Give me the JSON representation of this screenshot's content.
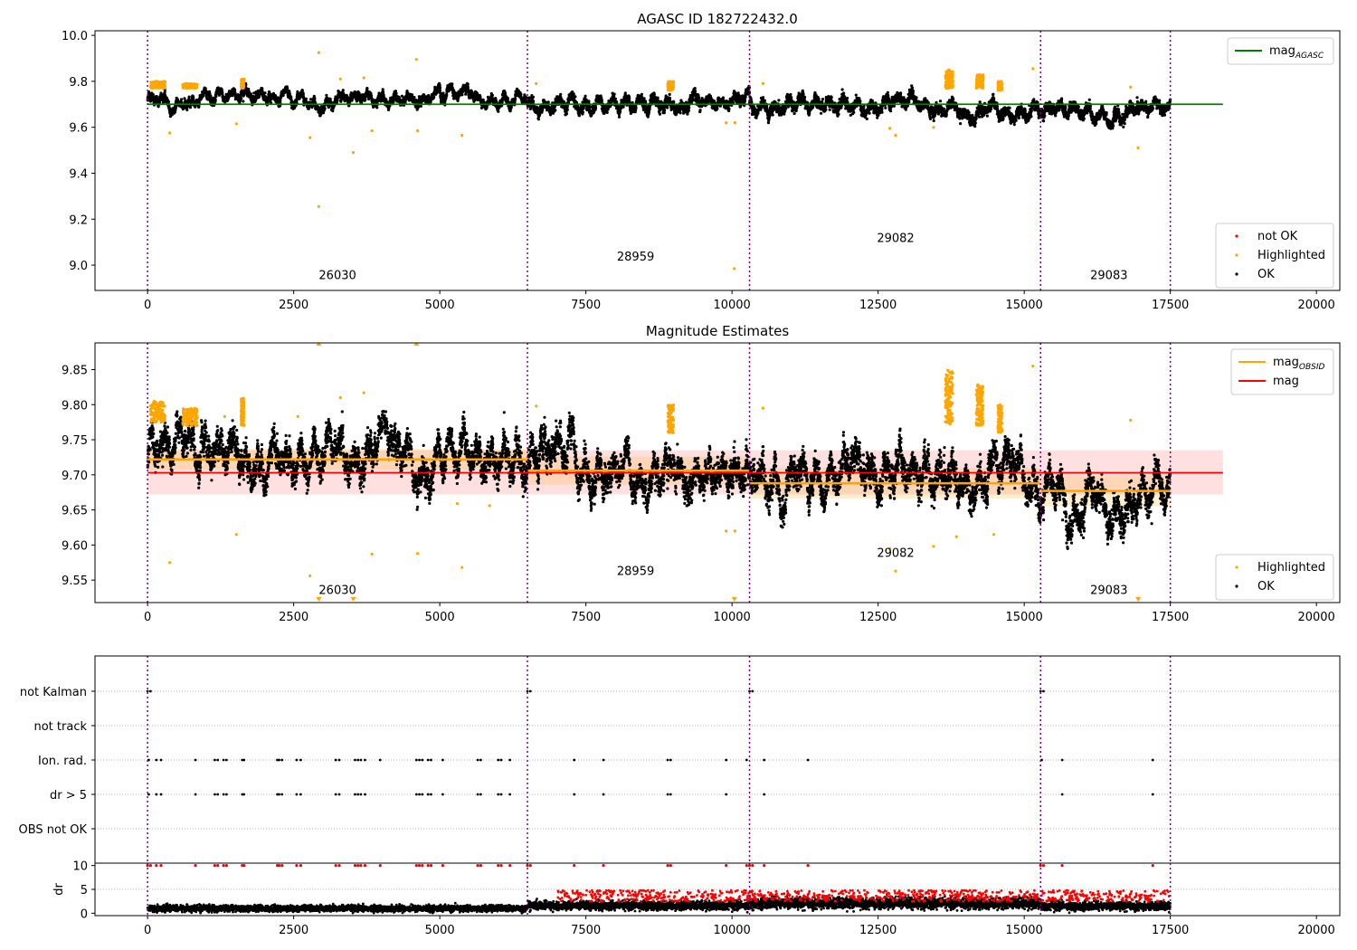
{
  "colors": {
    "ok": "#000000",
    "highlighted": "#ffa500",
    "not_ok": "#ff0000",
    "mag_agasc": "#008000",
    "mag_obsid": "#ffa500",
    "mag": "#ff0000",
    "boundary": "#800080"
  },
  "chart_data": [
    {
      "type": "scatter",
      "title": "AGASC ID 182722432.0",
      "xlim": [
        -900,
        20400
      ],
      "ylim": [
        8.89,
        10.02
      ],
      "xticks": [
        0,
        2500,
        5000,
        7500,
        10000,
        12500,
        15000,
        17500,
        20000
      ],
      "xtick_labels": [
        "0",
        "2500",
        "5000",
        "7500",
        "10000",
        "12500",
        "15000",
        "17500",
        "20000"
      ],
      "yticks": [
        9.0,
        9.2,
        9.4,
        9.6,
        9.8,
        10.0
      ],
      "ytick_labels": [
        "9.0",
        "9.2",
        "9.4",
        "9.6",
        "9.8",
        "10.0"
      ],
      "obsid_boundaries": [
        0,
        6500,
        10300,
        15280,
        17500
      ],
      "obsid_labels": [
        {
          "text": "26030",
          "x": 3250,
          "y": 8.94
        },
        {
          "text": "28959",
          "x": 8350,
          "y": 9.02
        },
        {
          "text": "29082",
          "x": 12800,
          "y": 9.1
        },
        {
          "text": "29083",
          "x": 16450,
          "y": 8.94
        }
      ],
      "lines": [
        {
          "name": "mag",
          "sub": "AGASC",
          "y": 9.7,
          "x": [
            0,
            18400
          ],
          "color": "#008000"
        }
      ],
      "legend_upper": [
        {
          "text": "mag",
          "sub": "AGASC",
          "kind": "line",
          "color": "#008000"
        }
      ],
      "legend_lower": [
        {
          "text": "not OK",
          "kind": "dot",
          "color": "#ff0000"
        },
        {
          "text": "Highlighted",
          "kind": "dot",
          "color": "#ffa500"
        },
        {
          "text": "OK",
          "kind": "dot",
          "color": "#000000"
        }
      ],
      "segments": [
        {
          "x0": 0,
          "x1": 6500,
          "mean": 9.72,
          "sd": 0.015
        },
        {
          "x0": 6500,
          "x1": 10300,
          "mean": 9.705,
          "sd": 0.02
        },
        {
          "x0": 10300,
          "x1": 15280,
          "mean": 9.69,
          "sd": 0.022
        },
        {
          "x0": 15280,
          "x1": 17500,
          "mean": 9.675,
          "sd": 0.022
        }
      ],
      "highlighted_points": [
        {
          "x": 2930,
          "y": 9.925
        },
        {
          "x": 4600,
          "y": 9.895
        },
        {
          "x": 2930,
          "y": 9.255
        },
        {
          "x": 3520,
          "y": 9.49
        },
        {
          "x": 2780,
          "y": 9.555
        },
        {
          "x": 5380,
          "y": 9.565
        },
        {
          "x": 380,
          "y": 9.575
        },
        {
          "x": 3840,
          "y": 9.585
        },
        {
          "x": 4620,
          "y": 9.585
        },
        {
          "x": 1520,
          "y": 9.615
        },
        {
          "x": 10040,
          "y": 8.985
        },
        {
          "x": 12800,
          "y": 9.565
        },
        {
          "x": 12700,
          "y": 9.595
        },
        {
          "x": 13450,
          "y": 9.6
        },
        {
          "x": 16950,
          "y": 9.51
        },
        {
          "x": 15150,
          "y": 9.855
        },
        {
          "x": 10050,
          "y": 9.62
        },
        {
          "x": 9900,
          "y": 9.62
        },
        {
          "x": 3300,
          "y": 9.81
        },
        {
          "x": 3700,
          "y": 9.815
        },
        {
          "x": 6650,
          "y": 9.79
        },
        {
          "x": 10530,
          "y": 9.79
        },
        {
          "x": 16820,
          "y": 9.775
        }
      ],
      "highlighted_clusters": [
        {
          "x0": 50,
          "x1": 300,
          "y0": 9.77,
          "y1": 9.8
        },
        {
          "x0": 600,
          "x1": 850,
          "y0": 9.77,
          "y1": 9.79
        },
        {
          "x0": 1600,
          "x1": 1650,
          "y0": 9.77,
          "y1": 9.81
        },
        {
          "x0": 8900,
          "x1": 9000,
          "y0": 9.76,
          "y1": 9.8
        },
        {
          "x0": 13650,
          "x1": 13780,
          "y0": 9.77,
          "y1": 9.85
        },
        {
          "x0": 14180,
          "x1": 14300,
          "y0": 9.77,
          "y1": 9.83
        },
        {
          "x0": 14550,
          "x1": 14620,
          "y0": 9.76,
          "y1": 9.8
        }
      ]
    },
    {
      "type": "scatter",
      "title": "Magnitude Estimates",
      "xlim": [
        -900,
        20400
      ],
      "ylim": [
        9.518,
        9.888
      ],
      "xticks": [
        0,
        2500,
        5000,
        7500,
        10000,
        12500,
        15000,
        17500,
        20000
      ],
      "xtick_labels": [
        "0",
        "2500",
        "5000",
        "7500",
        "10000",
        "12500",
        "15000",
        "17500",
        "20000"
      ],
      "yticks": [
        9.55,
        9.6,
        9.65,
        9.7,
        9.75,
        9.8,
        9.85
      ],
      "ytick_labels": [
        "9.55",
        "9.60",
        "9.65",
        "9.70",
        "9.75",
        "9.80",
        "9.85"
      ],
      "obsid_boundaries": [
        0,
        6500,
        10300,
        15280,
        17500
      ],
      "obsid_labels": [
        {
          "text": "26030",
          "x": 3250,
          "y": 9.53
        },
        {
          "text": "28959",
          "x": 8350,
          "y": 9.557
        },
        {
          "text": "29082",
          "x": 12800,
          "y": 9.583
        },
        {
          "text": "29083",
          "x": 16450,
          "y": 9.53
        }
      ],
      "mag": {
        "y": 9.703,
        "lo": 9.672,
        "hi": 9.735,
        "x": [
          0,
          18400
        ],
        "color": "#ff0000"
      },
      "mag_obsid": [
        {
          "x0": 0,
          "x1": 6500,
          "y": 9.722,
          "lo": 9.707,
          "hi": 9.737
        },
        {
          "x0": 6500,
          "x1": 10300,
          "y": 9.706,
          "lo": 9.686,
          "hi": 9.726
        },
        {
          "x0": 10300,
          "x1": 15280,
          "y": 9.688,
          "lo": 9.666,
          "hi": 9.71
        },
        {
          "x0": 15280,
          "x1": 17500,
          "y": 9.677,
          "lo": 9.655,
          "hi": 9.699
        }
      ],
      "legend_upper": [
        {
          "text": "mag",
          "sub": "OBSID",
          "kind": "line",
          "color": "#ffa500"
        },
        {
          "text": "mag",
          "sub": "",
          "kind": "line",
          "color": "#ff0000"
        }
      ],
      "legend_lower": [
        {
          "text": "Highlighted",
          "kind": "dot",
          "color": "#ffa500"
        },
        {
          "text": "OK",
          "kind": "dot",
          "color": "#000000"
        }
      ],
      "highlighted_points": [
        {
          "x": 3300,
          "y": 9.81
        },
        {
          "x": 3700,
          "y": 9.817
        },
        {
          "x": 380,
          "y": 9.575
        },
        {
          "x": 1520,
          "y": 9.615
        },
        {
          "x": 2780,
          "y": 9.556
        },
        {
          "x": 3840,
          "y": 9.587
        },
        {
          "x": 4620,
          "y": 9.588
        },
        {
          "x": 5380,
          "y": 9.568
        },
        {
          "x": 5300,
          "y": 9.659
        },
        {
          "x": 5850,
          "y": 9.656
        },
        {
          "x": 10050,
          "y": 9.62
        },
        {
          "x": 9900,
          "y": 9.62
        },
        {
          "x": 12800,
          "y": 9.563
        },
        {
          "x": 12700,
          "y": 9.595
        },
        {
          "x": 13450,
          "y": 9.598
        },
        {
          "x": 13840,
          "y": 9.612
        },
        {
          "x": 14480,
          "y": 9.615
        },
        {
          "x": 16820,
          "y": 9.778
        },
        {
          "x": 6650,
          "y": 9.798
        },
        {
          "x": 10530,
          "y": 9.795
        },
        {
          "x": 15150,
          "y": 9.855
        },
        {
          "x": 2570,
          "y": 9.783
        },
        {
          "x": 1320,
          "y": 9.783
        }
      ],
      "offscale_points": [
        {
          "x": 2930,
          "y": 9.888,
          "dir": "up"
        },
        {
          "x": 4600,
          "y": 9.888,
          "dir": "up"
        },
        {
          "x": 2930,
          "y": 9.522,
          "dir": "down"
        },
        {
          "x": 3520,
          "y": 9.522,
          "dir": "down"
        },
        {
          "x": 10040,
          "y": 9.522,
          "dir": "down"
        },
        {
          "x": 16950,
          "y": 9.522,
          "dir": "down"
        }
      ],
      "highlighted_clusters": [
        {
          "x0": 50,
          "x1": 300,
          "y0": 9.775,
          "y1": 9.805
        },
        {
          "x0": 600,
          "x1": 850,
          "y0": 9.77,
          "y1": 9.795
        },
        {
          "x0": 1600,
          "x1": 1650,
          "y0": 9.77,
          "y1": 9.81
        },
        {
          "x0": 8900,
          "x1": 9000,
          "y0": 9.76,
          "y1": 9.8
        },
        {
          "x0": 13650,
          "x1": 13780,
          "y0": 9.77,
          "y1": 9.85
        },
        {
          "x0": 14180,
          "x1": 14300,
          "y0": 9.77,
          "y1": 9.83
        },
        {
          "x0": 14550,
          "x1": 14620,
          "y0": 9.76,
          "y1": 9.8
        }
      ]
    },
    {
      "type": "scatter",
      "title": "",
      "xlim": [
        -900,
        20400
      ],
      "categories": [
        "not Kalman",
        "not track",
        "Ion. rad.",
        "dr > 5",
        "OBS not OK"
      ],
      "ytick_labels": [
        "not Kalman",
        "not track",
        "Ion. rad.",
        "dr > 5",
        "OBS not OK"
      ],
      "obsid_boundaries": [
        0,
        6500,
        10300,
        15280,
        17500
      ],
      "flag_points": {
        "not Kalman": [
          0,
          50,
          6500,
          6550,
          10300,
          10350,
          15280,
          15330
        ],
        "not track": [],
        "Ion. rad.": [
          20,
          150,
          230,
          820,
          1150,
          1200,
          1300,
          1350,
          1620,
          1650,
          2220,
          2250,
          2300,
          2550,
          2620,
          3220,
          3280,
          3550,
          3600,
          3650,
          3720,
          3980,
          4600,
          4650,
          4700,
          4800,
          4850,
          5050,
          5650,
          5700,
          6000,
          6050,
          6200,
          7300,
          7800,
          8900,
          8950,
          9900,
          10250,
          10550,
          11300,
          15300,
          15650,
          17200
        ],
        "dr > 5": [
          20,
          150,
          230,
          820,
          1150,
          1200,
          1300,
          1350,
          1620,
          1650,
          2220,
          2250,
          2300,
          2550,
          2620,
          3220,
          3280,
          3550,
          3600,
          3650,
          3720,
          4600,
          4650,
          4700,
          4800,
          4850,
          5050,
          5650,
          5700,
          6000,
          6050,
          6200,
          7300,
          7800,
          8900,
          8950,
          9900,
          10550,
          15650,
          17200
        ],
        "OBS not OK": []
      }
    },
    {
      "type": "scatter",
      "title": "",
      "xlim": [
        -900,
        20400
      ],
      "ylim": [
        -0.5,
        10.5
      ],
      "ylabel": "dr",
      "xticks": [
        0,
        2500,
        5000,
        7500,
        10000,
        12500,
        15000,
        17500,
        20000
      ],
      "xtick_labels": [
        "0",
        "2500",
        "5000",
        "7500",
        "10000",
        "12500",
        "15000",
        "17500",
        "20000"
      ],
      "yticks": [
        0,
        5,
        10
      ],
      "ytick_labels": [
        "0",
        "5",
        "10"
      ],
      "obsid_boundaries": [
        0,
        6500,
        10300,
        15280,
        17500
      ],
      "dr_segments": [
        {
          "x0": 0,
          "x1": 6500,
          "mean": 1.0,
          "sd": 0.45
        },
        {
          "x0": 6500,
          "x1": 10300,
          "mean": 1.6,
          "sd": 0.6
        },
        {
          "x0": 10300,
          "x1": 15280,
          "mean": 2.1,
          "sd": 0.8
        },
        {
          "x0": 15280,
          "x1": 17500,
          "mean": 1.5,
          "sd": 0.6
        }
      ],
      "dr_clipped_at": 10,
      "red_x": [
        0,
        50,
        150,
        230,
        820,
        1150,
        1200,
        1300,
        1350,
        1620,
        1650,
        2220,
        2250,
        2300,
        2550,
        2620,
        3220,
        3280,
        3550,
        3600,
        3650,
        3720,
        3980,
        4600,
        4650,
        4700,
        4800,
        4850,
        5050,
        5650,
        5700,
        6000,
        6050,
        6200,
        6500,
        6550,
        7300,
        7800,
        8900,
        8950,
        9900,
        10250,
        10300,
        10350,
        10550,
        11300,
        15280,
        15330,
        15650,
        17200
      ]
    }
  ]
}
